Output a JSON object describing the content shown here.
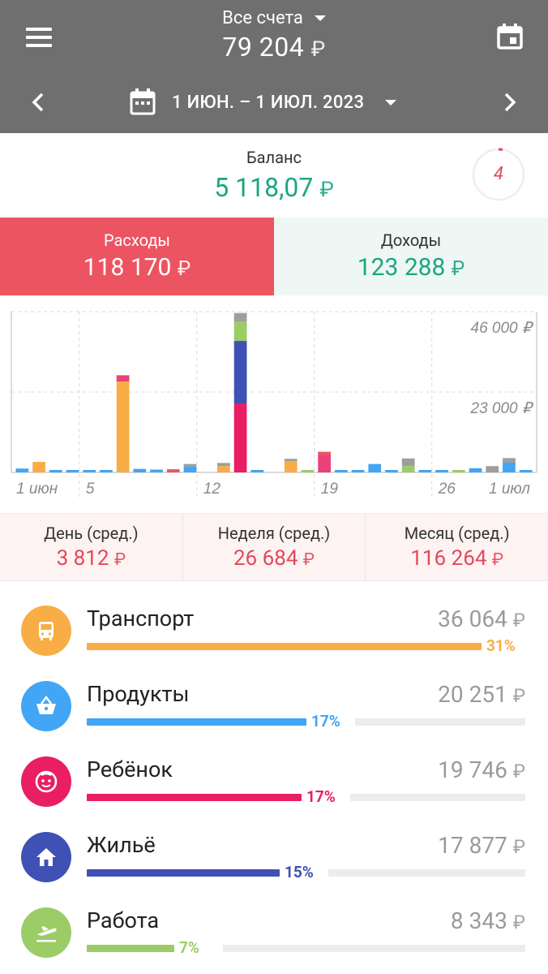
{
  "header": {
    "account_title": "Все счета",
    "account_amount": "79 204",
    "currency": "₽",
    "date_range": "1 ИЮН. – 1 ИЮЛ. 2023"
  },
  "balance": {
    "label": "Баланс",
    "value": "5 118,07",
    "ring_number": "4"
  },
  "tiles": {
    "expenses_label": "Расходы",
    "expenses_value": "118 170",
    "income_label": "Доходы",
    "income_value": "123 288"
  },
  "chart_data": {
    "type": "bar",
    "stacked": true,
    "y_ticks": [
      "46 000 ₽",
      "23 000 ₽"
    ],
    "x_tick_labels": [
      "1 июн",
      "5",
      "12",
      "19",
      "26",
      "1 июл"
    ],
    "ylim": [
      0,
      46000
    ],
    "days": [
      {
        "day": "1 июн",
        "segments": [
          {
            "color": "#42a5f5",
            "value": 1100
          }
        ]
      },
      {
        "day": "2",
        "segments": [
          {
            "color": "#f8ad46",
            "value": 3000
          }
        ]
      },
      {
        "day": "3",
        "segments": [
          {
            "color": "#42a5f5",
            "value": 600
          }
        ]
      },
      {
        "day": "4",
        "segments": [
          {
            "color": "#42a5f5",
            "value": 600
          }
        ]
      },
      {
        "day": "5",
        "segments": [
          {
            "color": "#42a5f5",
            "value": 600
          }
        ]
      },
      {
        "day": "6",
        "segments": [
          {
            "color": "#42a5f5",
            "value": 600
          }
        ]
      },
      {
        "day": "7",
        "segments": [
          {
            "color": "#f8ad46",
            "value": 26000
          },
          {
            "color": "#ec407a",
            "value": 1800
          }
        ]
      },
      {
        "day": "8",
        "segments": [
          {
            "color": "#42a5f5",
            "value": 1000
          }
        ]
      },
      {
        "day": "9",
        "segments": [
          {
            "color": "#42a5f5",
            "value": 800
          }
        ]
      },
      {
        "day": "10",
        "segments": [
          {
            "color": "#ec5461",
            "value": 900
          }
        ]
      },
      {
        "day": "11",
        "segments": [
          {
            "color": "#42a5f5",
            "value": 1700
          },
          {
            "color": "#9e9e9e",
            "value": 500
          }
        ]
      },
      {
        "day": "12",
        "segments": [],
        "spacer": true
      },
      {
        "day": "13",
        "segments": [
          {
            "color": "#f8ad46",
            "value": 1800
          },
          {
            "color": "#9e9e9e",
            "value": 900
          }
        ]
      },
      {
        "day": "14",
        "segments": [
          {
            "color": "#e91e63",
            "value": 19746
          },
          {
            "color": "#3f51b5",
            "value": 17877
          },
          {
            "color": "#9ccc65",
            "value": 5500
          },
          {
            "color": "#9e9e9e",
            "value": 2500
          }
        ]
      },
      {
        "day": "15",
        "segments": [
          {
            "color": "#42a5f5",
            "value": 600
          }
        ]
      },
      {
        "day": "16",
        "segments": [],
        "spacer": true
      },
      {
        "day": "17",
        "segments": [
          {
            "color": "#f8ad46",
            "value": 3200
          },
          {
            "color": "#9e9e9e",
            "value": 500
          }
        ]
      },
      {
        "day": "18",
        "segments": [
          {
            "color": "#9ccc65",
            "value": 600
          }
        ]
      },
      {
        "day": "19",
        "segments": [
          {
            "color": "#ec407a",
            "value": 5000
          },
          {
            "color": "#ec5461",
            "value": 900
          }
        ]
      },
      {
        "day": "20",
        "segments": [
          {
            "color": "#42a5f5",
            "value": 600
          }
        ]
      },
      {
        "day": "21",
        "segments": [
          {
            "color": "#42a5f5",
            "value": 600
          }
        ]
      },
      {
        "day": "22",
        "segments": [
          {
            "color": "#42a5f5",
            "value": 2400
          }
        ]
      },
      {
        "day": "23",
        "segments": [
          {
            "color": "#42a5f5",
            "value": 600
          }
        ]
      },
      {
        "day": "24",
        "segments": [
          {
            "color": "#9ccc65",
            "value": 1800
          },
          {
            "color": "#9e9e9e",
            "value": 2200
          }
        ]
      },
      {
        "day": "25",
        "segments": [
          {
            "color": "#42a5f5",
            "value": 600
          }
        ]
      },
      {
        "day": "26",
        "segments": [
          {
            "color": "#42a5f5",
            "value": 600
          }
        ]
      },
      {
        "day": "27",
        "segments": [
          {
            "color": "#9ccc65",
            "value": 600
          }
        ]
      },
      {
        "day": "28",
        "segments": [
          {
            "color": "#42a5f5",
            "value": 1200
          }
        ]
      },
      {
        "day": "29",
        "segments": [
          {
            "color": "#9e9e9e",
            "value": 1800
          }
        ]
      },
      {
        "day": "30",
        "segments": [
          {
            "color": "#42a5f5",
            "value": 2800
          },
          {
            "color": "#9e9e9e",
            "value": 1300
          }
        ]
      },
      {
        "day": "1 июл",
        "segments": [
          {
            "color": "#42a5f5",
            "value": 600
          }
        ]
      }
    ]
  },
  "averages": [
    {
      "label": "День (сред.)",
      "value": "3 812"
    },
    {
      "label": "Неделя (сред.)",
      "value": "26 684"
    },
    {
      "label": "Месяц (сред.)",
      "value": "116 264"
    }
  ],
  "categories": [
    {
      "name": "Транспорт",
      "amount": "36 064",
      "percent": "31%",
      "fraction": 0.9,
      "color": "#f8ad46",
      "icon": "bus-icon"
    },
    {
      "name": "Продукты",
      "amount": "20 251",
      "percent": "17%",
      "fraction": 0.5,
      "color": "#42a5f5",
      "icon": "basket-icon"
    },
    {
      "name": "Ребёнок",
      "amount": "19 746",
      "percent": "17%",
      "fraction": 0.49,
      "color": "#e91e63",
      "icon": "child-face-icon"
    },
    {
      "name": "Жильё",
      "amount": "17 877",
      "percent": "15%",
      "fraction": 0.44,
      "color": "#3f51b5",
      "icon": "house-icon"
    },
    {
      "name": "Работа",
      "amount": "8 343",
      "percent": "7%",
      "fraction": 0.2,
      "color": "#9ccc65",
      "icon": "plane-departure-icon"
    }
  ]
}
